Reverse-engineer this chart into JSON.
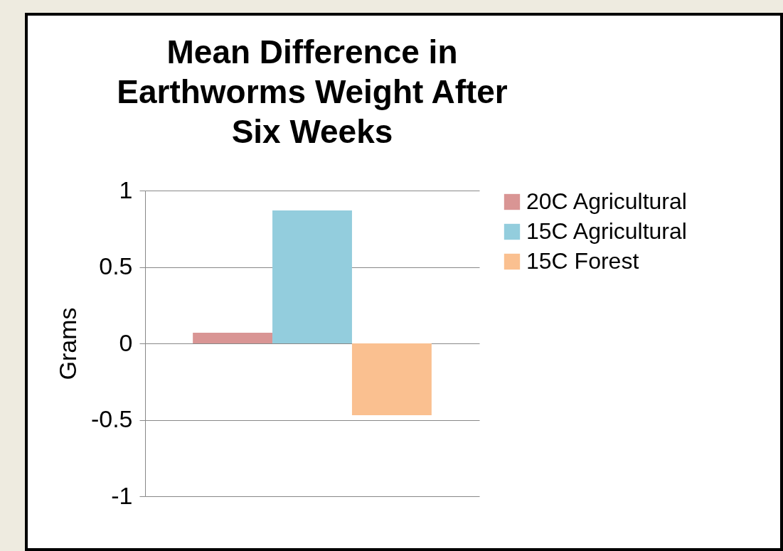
{
  "chart_data": {
    "type": "bar",
    "title": "Mean Difference in Earthworms Weight After Six Weeks",
    "ylabel": "Grams",
    "categories": [
      null
    ],
    "series": [
      {
        "name": "20C Agricultural",
        "color": "#d99594",
        "values": [
          0.07
        ]
      },
      {
        "name": "15C Agricultural",
        "color": "#93cddd",
        "values": [
          0.87
        ]
      },
      {
        "name": "15C Forest",
        "color": "#fac090",
        "values": [
          -0.47
        ]
      }
    ],
    "ylim": [
      -1,
      1
    ],
    "yticks": [
      -1,
      -0.5,
      0,
      0.5,
      1
    ],
    "grid": "y",
    "legend": "right"
  }
}
